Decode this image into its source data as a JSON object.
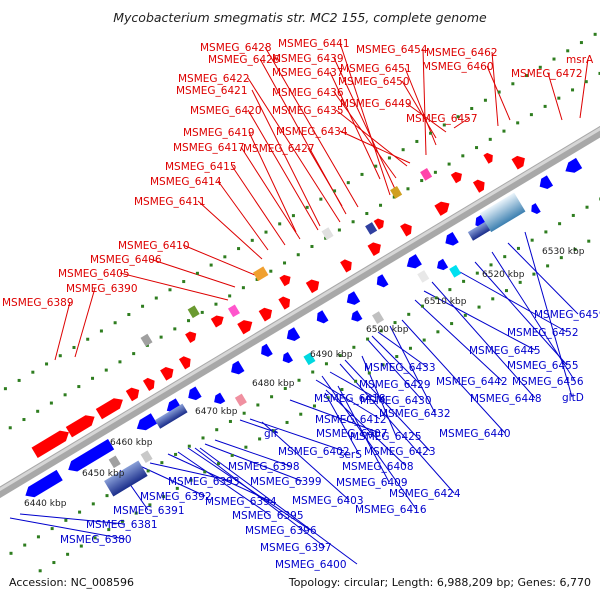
{
  "title": "Mycobacterium smegmatis str. MC2 155, complete genome",
  "footer": {
    "accession": "Accession: NC_008596",
    "summary": "Topology: circular; Length: 6,988,209 bp; Genes: 6,770"
  },
  "colors": {
    "forward_label": "#dd0000",
    "reverse_label": "#0000cc",
    "forward_gene": "#ff0000",
    "reverse_gene": "#0000ff",
    "backbone": "#9a9a9a",
    "dot_row": "#2e7d1f"
  },
  "scale_ticks": [
    "6440 kbp",
    "6450 kbp",
    "6460 kbp",
    "6470 kbp",
    "6480 kbp",
    "6490 kbp",
    "6500 kbp",
    "6510 kbp",
    "6520 kbp",
    "6530 kbp"
  ],
  "forward_labels": [
    "MSMEG_6389",
    "MSMEG_6390",
    "MSMEG_6405",
    "MSMEG_6406",
    "MSMEG_6410",
    "MSMEG_6411",
    "MSMEG_6414",
    "MSMEG_6415",
    "MSMEG_6417",
    "MSMEG_6419",
    "MSMEG_6420",
    "MSMEG_6421",
    "MSMEG_6422",
    "MSMEG_6426",
    "MSMEG_6428",
    "MSMEG_6427",
    "MSMEG_6441",
    "MSMEG_6439",
    "MSMEG_6437",
    "MSMEG_6436",
    "MSMEG_6435",
    "MSMEG_6434",
    "MSMEG_6454",
    "MSMEG_6451",
    "MSMEG_6450",
    "MSMEG_6449",
    "MSMEG_6457",
    "MSMEG_6462",
    "MSMEG_6460",
    "MSMEG_6472",
    "msrA"
  ],
  "reverse_labels": [
    "MSMEG_6380",
    "MSMEG_6381",
    "MSMEG_6391",
    "MSMEG_6392",
    "MSMEG_6393",
    "MSMEG_6394",
    "MSMEG_6395",
    "MSMEG_6396",
    "MSMEG_6397",
    "MSMEG_6400",
    "MSMEG_6399",
    "MSMEG_6398",
    "glf",
    "MSMEG_6402",
    "MSMEG_6403",
    "MSMEG_6407",
    "serS",
    "MSMEG_6408",
    "MSMEG_6409",
    "MSMEG_6412",
    "MSMEG_6416",
    "MSMEG_6418",
    "MSMEG_6424",
    "MSMEG_6423",
    "MSMEG_6425",
    "MSMEG_6430",
    "MSMEG_6429",
    "MSMEG_6433",
    "MSMEG_6432",
    "MSMEG_6440",
    "MSMEG_6442",
    "MSMEG_6445",
    "MSMEG_6448",
    "MSMEG_6452",
    "MSMEG_6455",
    "MSMEG_6456",
    "MSMEG_6459",
    "gltD"
  ]
}
